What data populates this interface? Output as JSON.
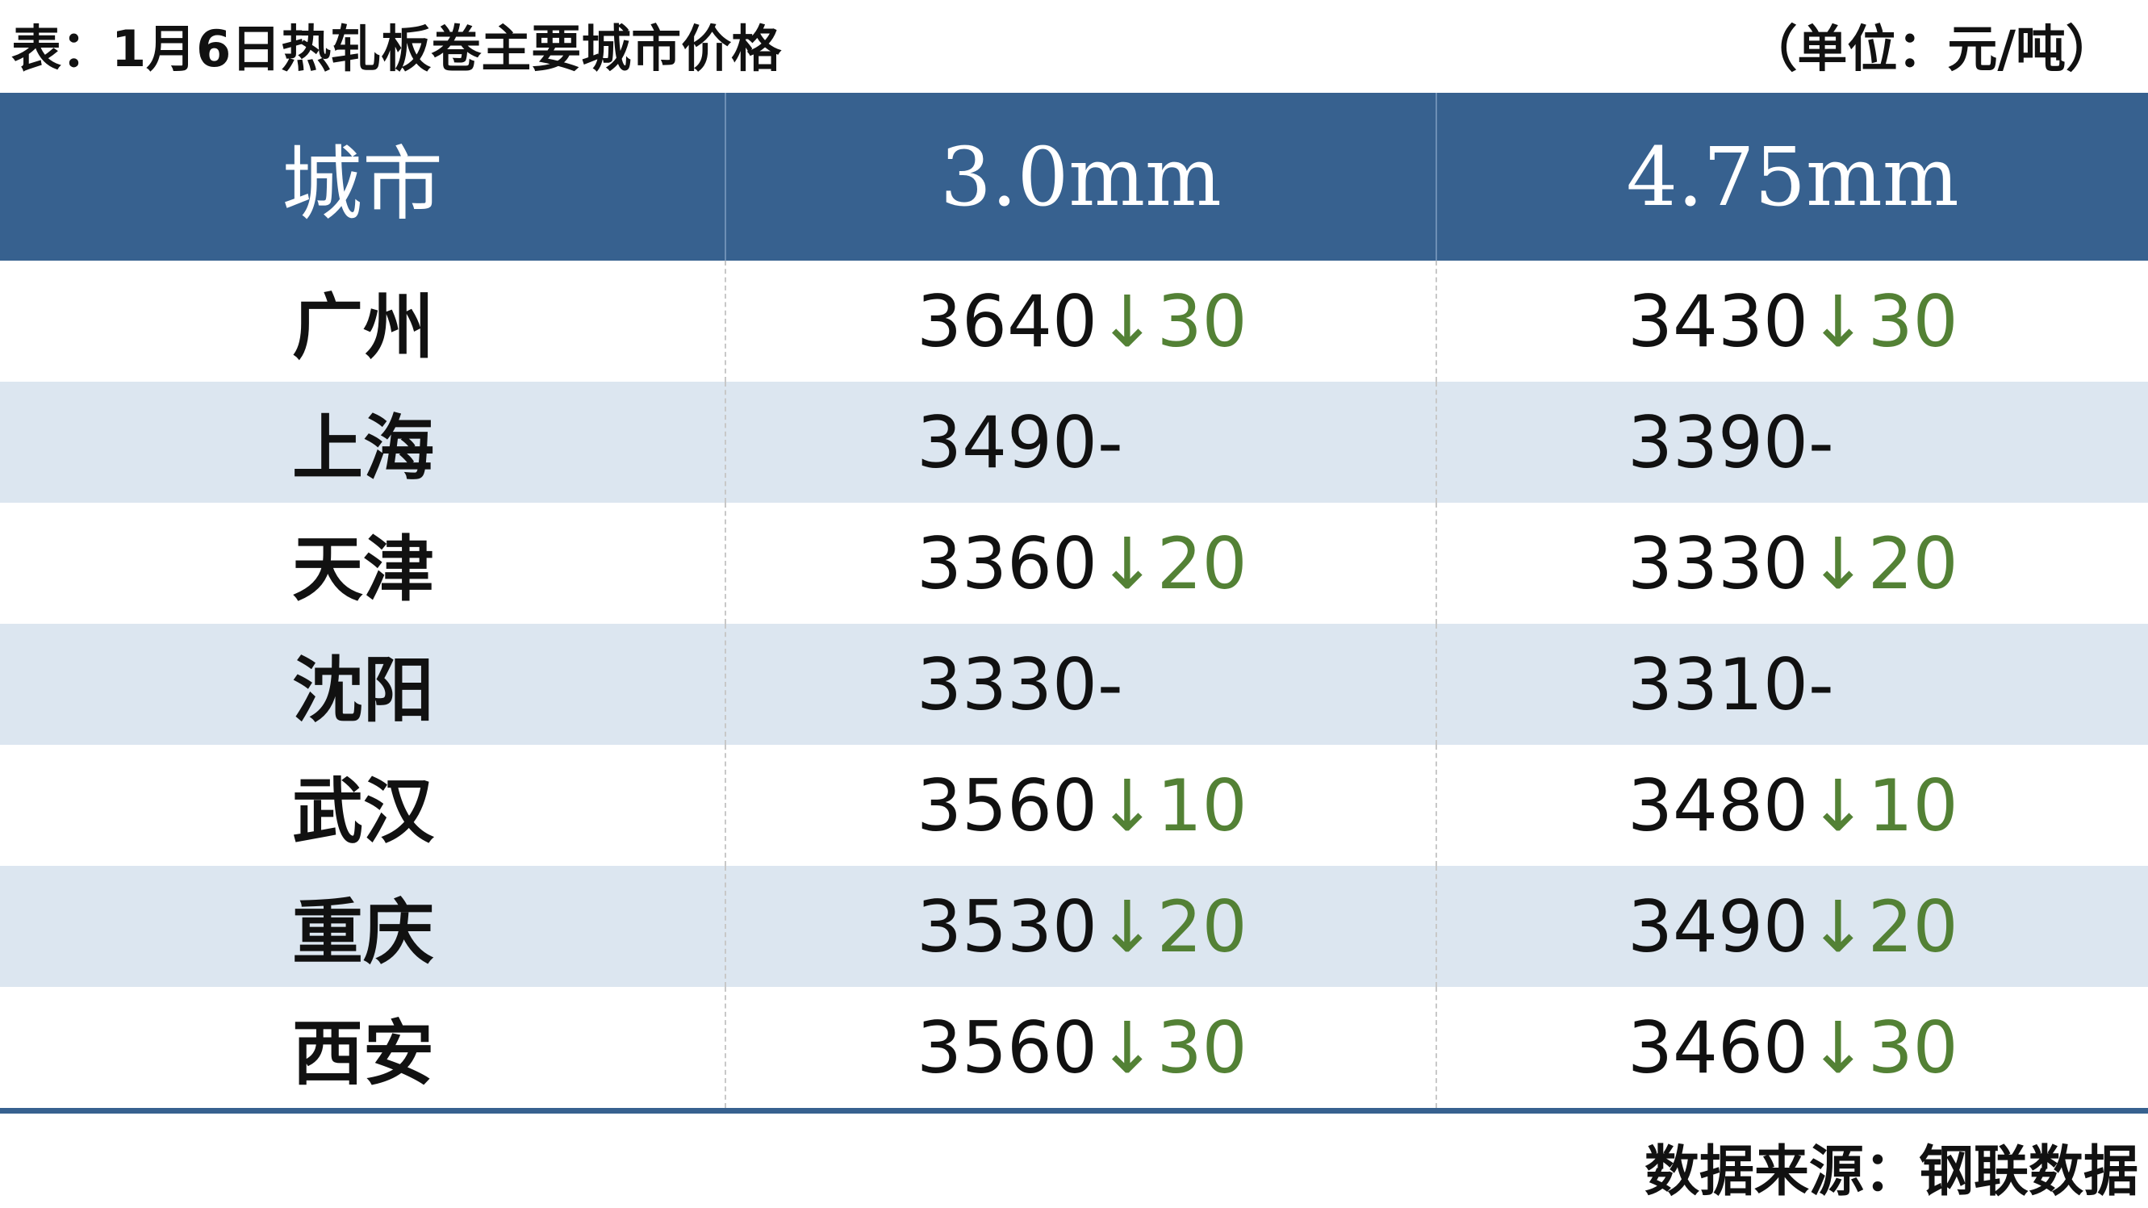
{
  "title": "表：1月6日热轧板卷主要城市价格",
  "unit": "（单位：元/吨）",
  "headers": [
    "城市",
    "3.0mm",
    "4.75mm"
  ],
  "rows": [
    {
      "city": "广州",
      "p30": "3640",
      "c30": "↓30",
      "p475": "3430",
      "c475": "↓30"
    },
    {
      "city": "上海",
      "p30": "3490",
      "c30": "-",
      "p475": "3390",
      "c475": "-"
    },
    {
      "city": "天津",
      "p30": "3360",
      "c30": "↓20",
      "p475": "3330",
      "c475": "↓20"
    },
    {
      "city": "沈阳",
      "p30": "3330",
      "c30": "-",
      "p475": "3310",
      "c475": "-"
    },
    {
      "city": "武汉",
      "p30": "3560",
      "c30": "↓10",
      "p475": "3480",
      "c475": "↓10"
    },
    {
      "city": "重庆",
      "p30": "3530",
      "c30": "↓20",
      "p475": "3490",
      "c475": "↓20"
    },
    {
      "city": "西安",
      "p30": "3560",
      "c30": "↓30",
      "p475": "3460",
      "c475": "↓30"
    }
  ],
  "source": "数据来源：钢联数据",
  "colors": {
    "header": "#37618F",
    "stripe": "#DCE6F0",
    "down": "#538135"
  }
}
